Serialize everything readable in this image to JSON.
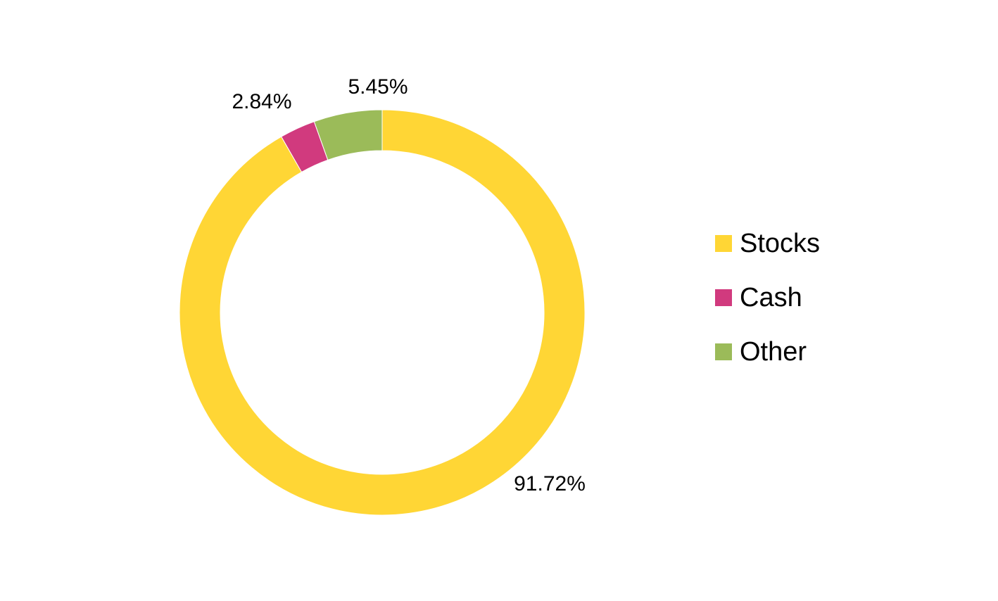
{
  "chart_data": {
    "type": "pie",
    "variant": "donut",
    "slices": [
      {
        "label": "Stocks",
        "value": 91.72,
        "data_label": "91.72%",
        "color": "#FFD635"
      },
      {
        "label": "Cash",
        "value": 2.84,
        "data_label": "2.84%",
        "color": "#D13A7E"
      },
      {
        "label": "Other",
        "value": 5.45,
        "data_label": "5.45%",
        "color": "#9BBB59"
      }
    ],
    "title": "",
    "legend": {
      "position": "right",
      "entries": [
        "Stocks",
        "Cash",
        "Other"
      ]
    },
    "start_angle": "12 o'clock",
    "direction": "clockwise"
  }
}
